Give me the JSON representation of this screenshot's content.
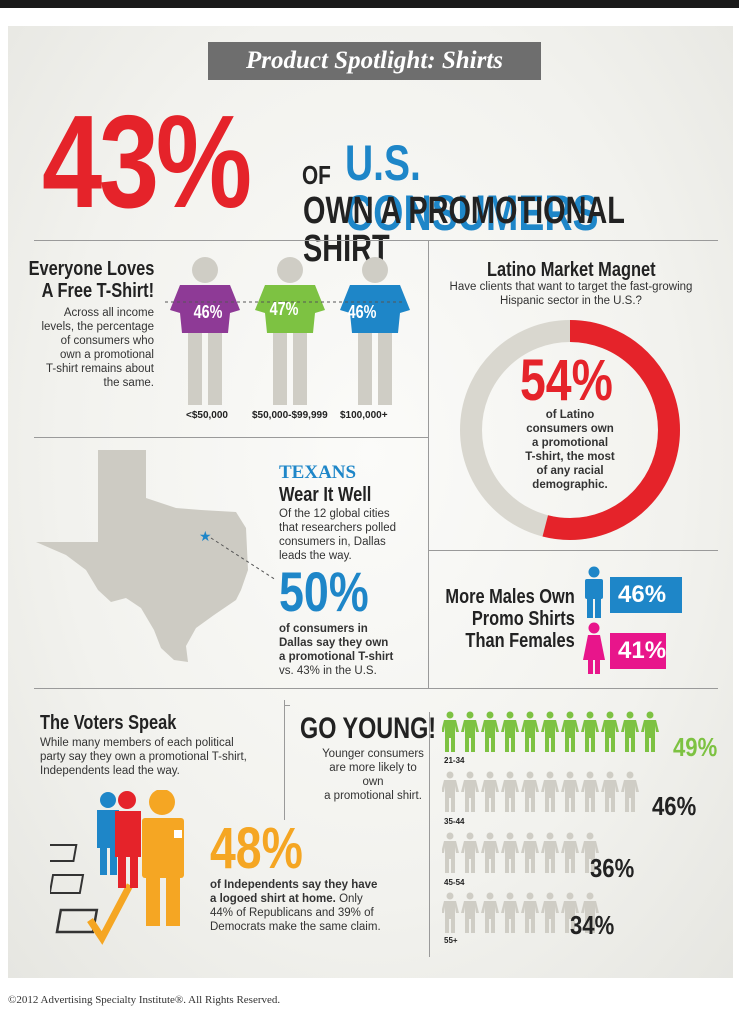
{
  "header": {
    "title": "Product Spotlight: Shirts",
    "big_stat": "43%",
    "of": "OF",
    "line1": "U.S. CONSUMERS",
    "line2": "OWN A PROMOTIONAL SHIRT"
  },
  "free_tshirt": {
    "heading_1": "Everyone Loves",
    "heading_2": "A Free T-Shirt!",
    "body": [
      "Across all income",
      "levels, the percentage",
      "of consumers who",
      "own a promotional",
      "T-shirt remains about",
      "the same."
    ],
    "shirts": [
      {
        "pct": "46%",
        "income": "<$50,000",
        "color": "#8e3a96"
      },
      {
        "pct": "47%",
        "income": "$50,000-$99,999",
        "color": "#7dc242"
      },
      {
        "pct": "46%",
        "income": "$100,000+",
        "color": "#1e86c8"
      }
    ]
  },
  "latino": {
    "heading": "Latino Market Magnet",
    "sub_1": "Have clients that want to target the fast-growing",
    "sub_2": "Hispanic sector in the U.S.?",
    "pct": "54%",
    "pct_value": 54,
    "desc": [
      "of Latino",
      "consumers own",
      "a promotional",
      "T-shirt, the most",
      "of any racial",
      "demographic."
    ]
  },
  "texans": {
    "kicker": "TEXANS",
    "heading": "Wear It Well",
    "body": [
      "Of the 12 global cities",
      "that researchers polled",
      "consumers in, Dallas",
      "leads the way."
    ],
    "pct": "50%",
    "desc": [
      "of consumers in",
      "Dallas say they own",
      "a promotional T-shirt"
    ],
    "desc_tail": "vs. 43% in the U.S."
  },
  "gender": {
    "heading": [
      "More Males Own",
      "Promo Shirts",
      "Than Females"
    ],
    "male_pct": "46%",
    "female_pct": "41%",
    "male_color": "#1e86c8",
    "female_color": "#e8158b"
  },
  "voters": {
    "heading": "The Voters Speak",
    "body": [
      "While many members of each political",
      "party say they own a promotional T-shirt,",
      "Independents lead the way."
    ],
    "pct": "48%",
    "desc_bold": [
      "of Independents say they have",
      "a logoed shirt at home."
    ],
    "desc_rest": [
      "Only",
      "44% of Republicans and 39% of",
      "Democrats make the same claim."
    ]
  },
  "young": {
    "heading": "GO YOUNG!",
    "body": [
      "Younger consumers",
      "are more likely to own",
      "a promotional shirt."
    ],
    "groups": [
      {
        "age": "21-34",
        "pct": "49%",
        "value": 49
      },
      {
        "age": "35-44",
        "pct": "46%",
        "value": 46
      },
      {
        "age": "45-54",
        "pct": "36%",
        "value": 36
      },
      {
        "age": "55+",
        "pct": "34%",
        "value": 34
      }
    ],
    "highlight_color": "#7dc242",
    "muted_color": "#cfcdc5"
  },
  "footer": "©2012 Advertising Specialty Institute®. All Rights Reserved.",
  "colors": {
    "red": "#e5232a",
    "blue": "#1e86c8",
    "orange": "#f5a623",
    "grey": "#cfcdc5"
  }
}
